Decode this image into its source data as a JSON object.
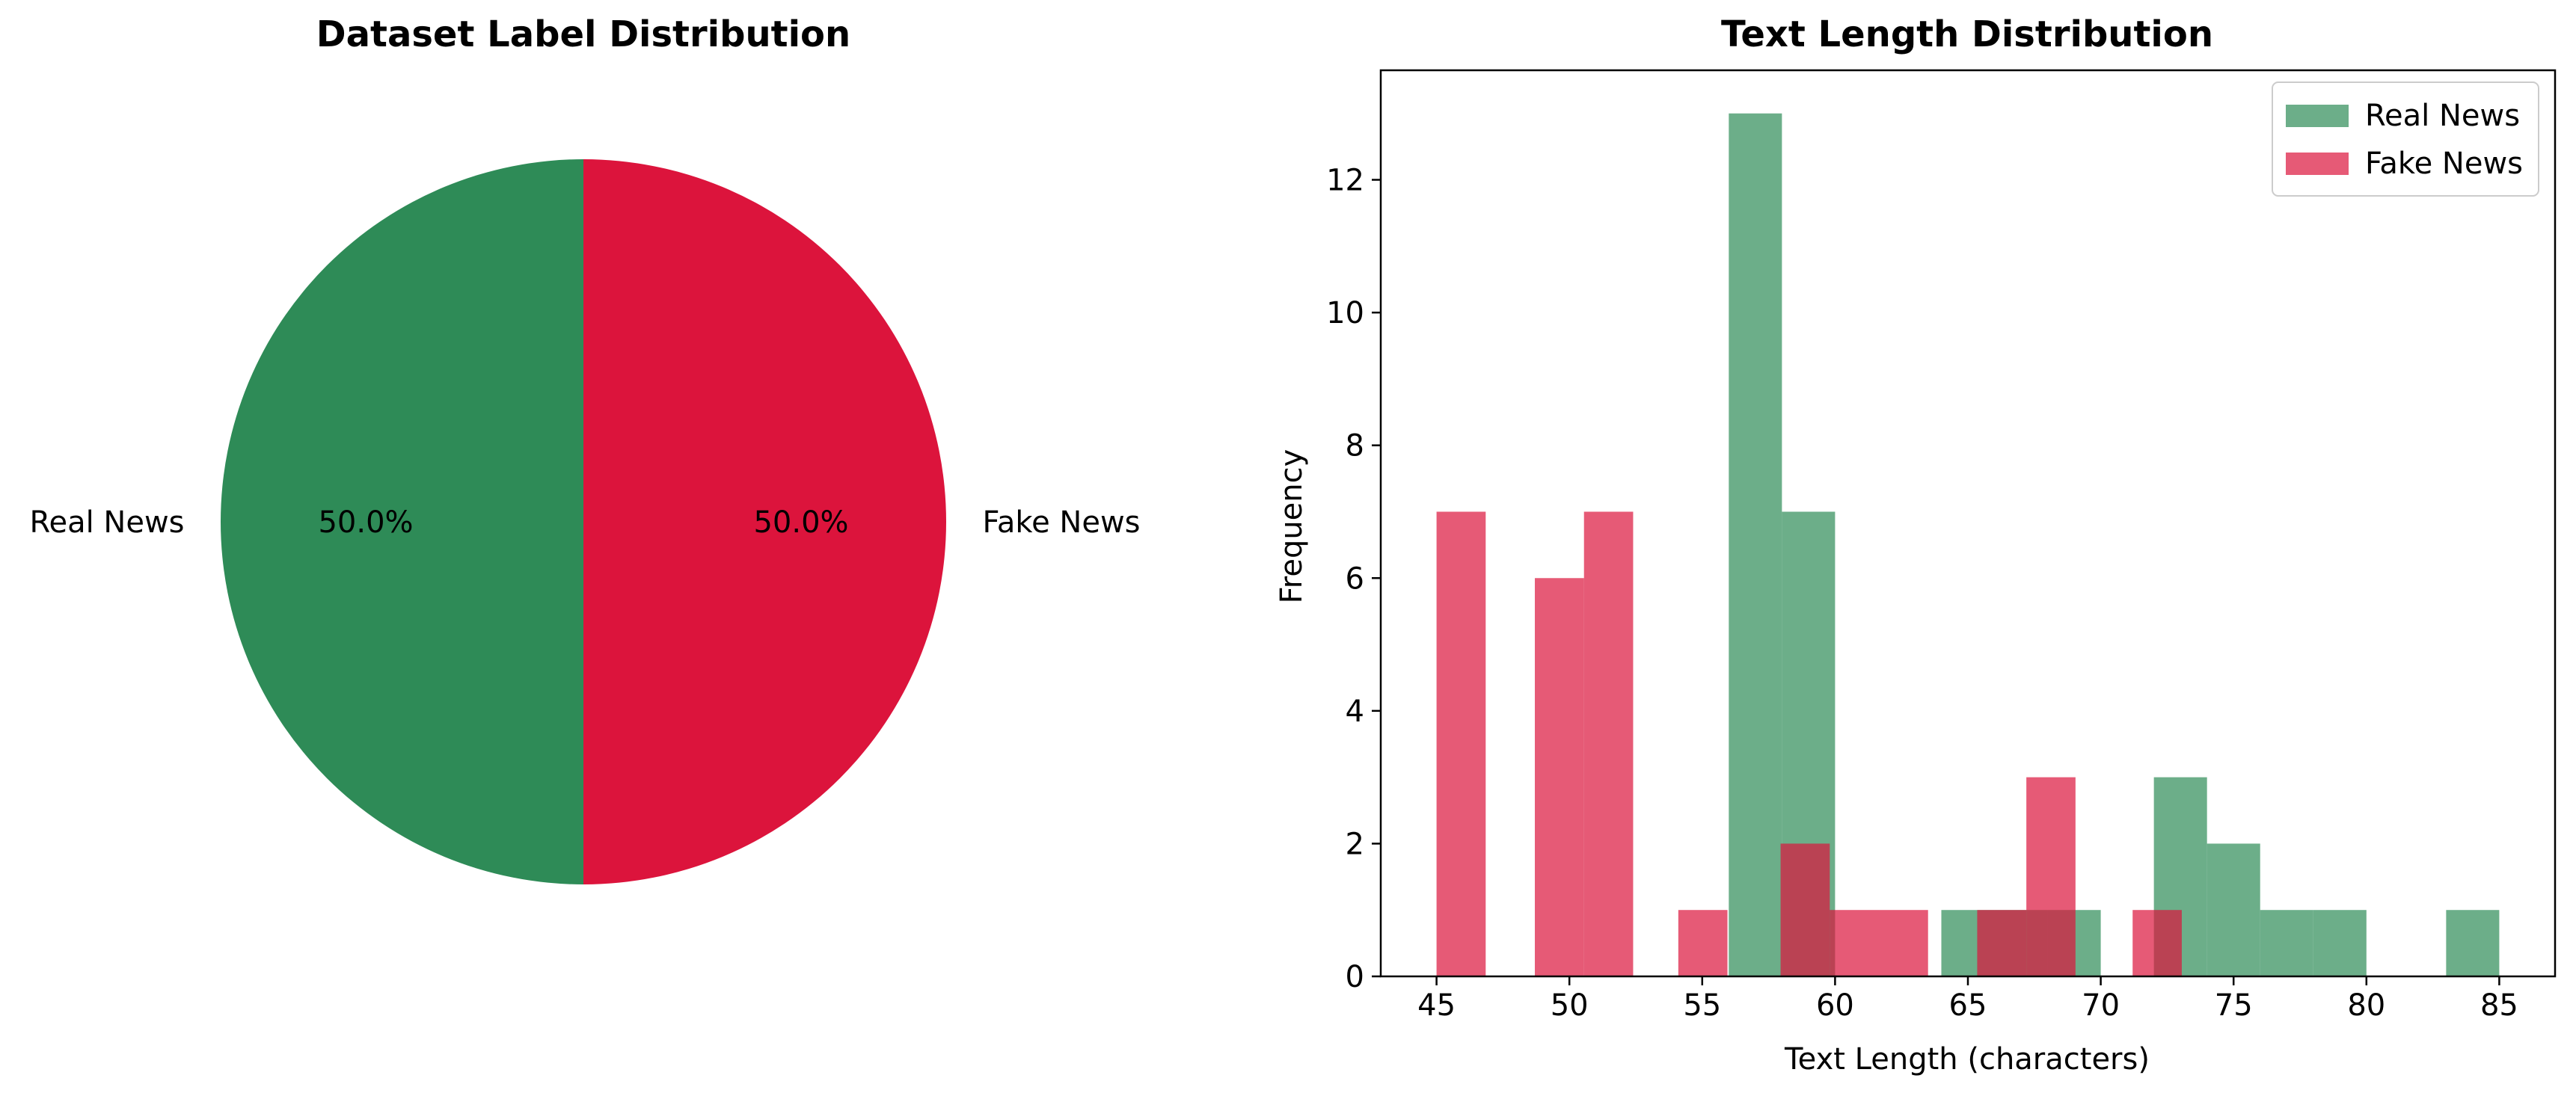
{
  "colors": {
    "real": "#2e8b57",
    "fake": "#dc143c",
    "axes": "#000000",
    "background": "#ffffff"
  },
  "chart_data": [
    {
      "type": "pie",
      "title": "Dataset Label Distribution",
      "labels": [
        "Real News",
        "Fake News"
      ],
      "values": [
        50.0,
        50.0
      ],
      "value_labels": [
        "50.0%",
        "50.0%"
      ],
      "colors": [
        "#2e8b57",
        "#dc143c"
      ],
      "start_angle": 90
    },
    {
      "type": "bar",
      "subtype": "histogram",
      "title": "Text Length Distribution",
      "xlabel": "Text Length (characters)",
      "ylabel": "Frequency",
      "xlim": [
        42.9,
        87.1
      ],
      "ylim": [
        0,
        13.65
      ],
      "xticks": [
        45,
        50,
        55,
        60,
        65,
        70,
        75,
        80,
        85
      ],
      "yticks": [
        0,
        2,
        4,
        6,
        8,
        10,
        12
      ],
      "grid": false,
      "legend": "top-right",
      "opacity": 0.7,
      "series": [
        {
          "name": "Real News",
          "color": "#2e8b57",
          "bins": [
            [
              56.0,
              58.0,
              13
            ],
            [
              58.0,
              60.0,
              7
            ],
            [
              64.0,
              66.0,
              1
            ],
            [
              66.0,
              68.0,
              1
            ],
            [
              68.0,
              70.0,
              1
            ],
            [
              72.0,
              74.0,
              3
            ],
            [
              74.0,
              76.0,
              2
            ],
            [
              76.0,
              78.0,
              1
            ],
            [
              78.0,
              80.0,
              1
            ],
            [
              83.0,
              85.0,
              1
            ]
          ]
        },
        {
          "name": "Fake News",
          "color": "#dc143c",
          "bins": [
            [
              45.0,
              46.85,
              7
            ],
            [
              48.7,
              50.55,
              6
            ],
            [
              50.55,
              52.4,
              7
            ],
            [
              54.1,
              55.95,
              1
            ],
            [
              57.95,
              59.8,
              2
            ],
            [
              59.8,
              61.65,
              1
            ],
            [
              61.65,
              63.5,
              1
            ],
            [
              65.35,
              67.2,
              1
            ],
            [
              67.2,
              69.05,
              3
            ],
            [
              71.2,
              73.05,
              1
            ]
          ]
        }
      ]
    }
  ]
}
